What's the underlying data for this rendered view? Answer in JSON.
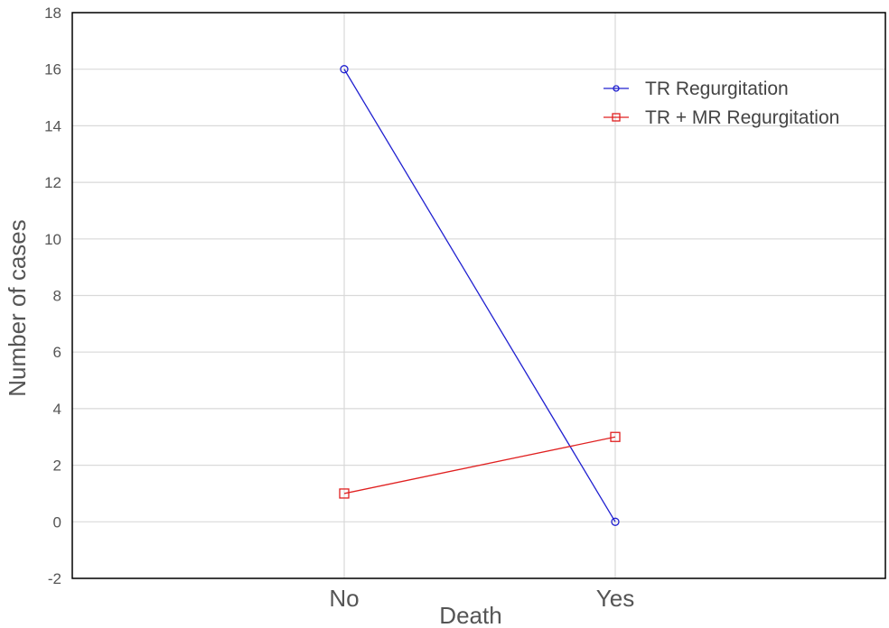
{
  "chart_data": {
    "type": "line",
    "categories": [
      "No",
      "Yes"
    ],
    "series": [
      {
        "name": "TR Regurgitation",
        "values": [
          16,
          0
        ],
        "color": "#2020d0",
        "marker": "circle"
      },
      {
        "name": "TR + MR Regurgitation",
        "values": [
          1,
          3
        ],
        "color": "#e02020",
        "marker": "square"
      }
    ],
    "xlabel": "Death",
    "ylabel": "Number of cases",
    "ylim": [
      -2,
      18
    ],
    "yticks": [
      -2,
      0,
      2,
      4,
      6,
      8,
      10,
      12,
      14,
      16,
      18
    ],
    "grid": true,
    "legend_position": "top-right"
  }
}
